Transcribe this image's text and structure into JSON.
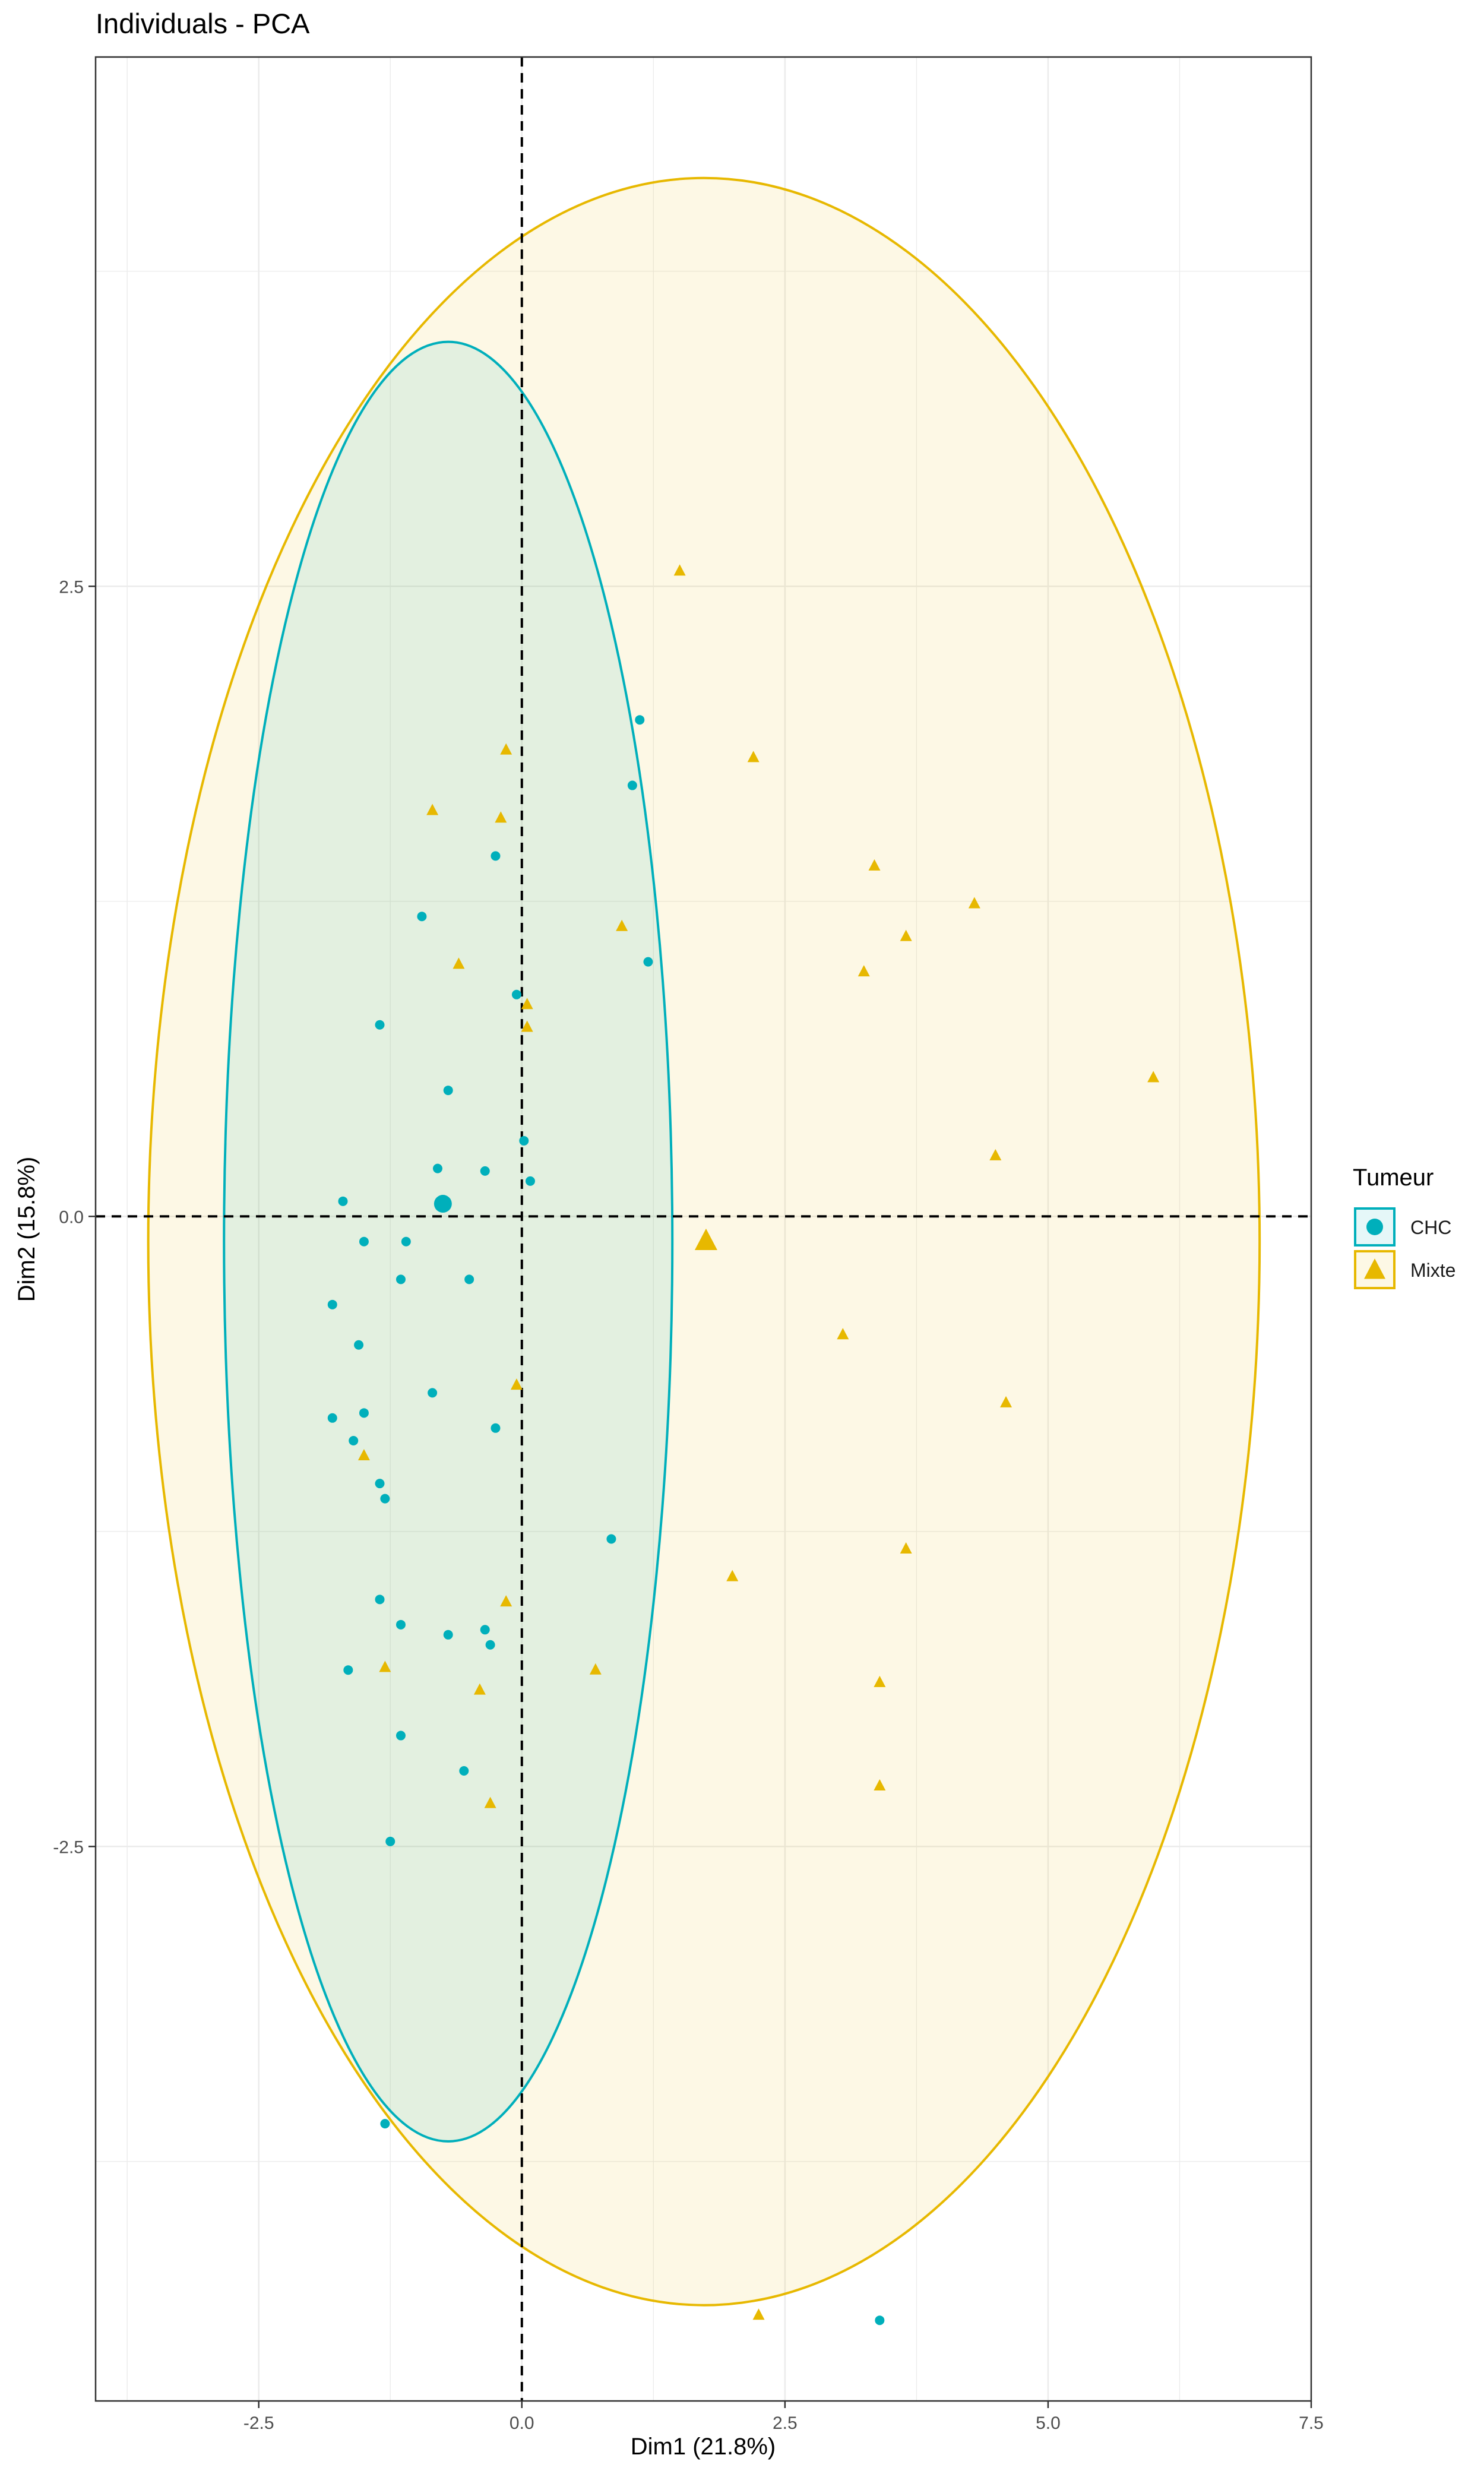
{
  "chart_data": {
    "type": "scatter",
    "title": "Individuals - PCA",
    "xlabel": "Dim1 (21.8%)",
    "ylabel": "Dim2 (15.8%)",
    "xlim": [
      -4.05,
      7.5
    ],
    "ylim": [
      -4.7,
      4.6
    ],
    "x_ticks": [
      -2.5,
      0.0,
      2.5,
      5.0,
      7.5
    ],
    "x_tick_labels": [
      "-2.5",
      "0.0",
      "2.5",
      "5.0",
      "7.5"
    ],
    "y_ticks": [
      -2.5,
      0.0,
      2.5
    ],
    "y_tick_labels": [
      "-2.5",
      "0.0",
      "2.5"
    ],
    "grid": true,
    "reference_lines": {
      "x": 0,
      "y": 0,
      "style": "dashed"
    },
    "legend": {
      "title": "Tumeur",
      "position": "right"
    },
    "series": [
      {
        "name": "CHC",
        "color": "#00AFBB",
        "marker": "circle",
        "centroid": [
          -0.75,
          0.05
        ],
        "ellipse": {
          "center": [
            -0.7,
            -0.1
          ],
          "rx": 2.13,
          "ry": 3.57,
          "fill": "#00AFBB",
          "fill_opacity": 0.1
        },
        "points": [
          [
            1.12,
            1.97
          ],
          [
            1.05,
            1.71
          ],
          [
            -0.25,
            1.43
          ],
          [
            -0.95,
            1.19
          ],
          [
            1.2,
            1.01
          ],
          [
            -0.05,
            0.88
          ],
          [
            -1.35,
            0.76
          ],
          [
            -0.7,
            0.5
          ],
          [
            0.02,
            0.3
          ],
          [
            -0.8,
            0.19
          ],
          [
            -0.35,
            0.18
          ],
          [
            0.08,
            0.14
          ],
          [
            -1.7,
            0.06
          ],
          [
            -1.5,
            -0.1
          ],
          [
            -1.1,
            -0.1
          ],
          [
            -1.15,
            -0.25
          ],
          [
            -0.5,
            -0.25
          ],
          [
            -1.8,
            -0.35
          ],
          [
            -1.55,
            -0.51
          ],
          [
            -0.85,
            -0.7
          ],
          [
            -1.8,
            -0.8
          ],
          [
            -1.5,
            -0.78
          ],
          [
            -0.25,
            -0.84
          ],
          [
            -1.6,
            -0.89
          ],
          [
            -1.35,
            -1.06
          ],
          [
            -1.3,
            -1.12
          ],
          [
            0.85,
            -1.28
          ],
          [
            -1.35,
            -1.52
          ],
          [
            -1.15,
            -1.62
          ],
          [
            -0.7,
            -1.66
          ],
          [
            -0.35,
            -1.64
          ],
          [
            -0.3,
            -1.7
          ],
          [
            -1.65,
            -1.8
          ],
          [
            -1.15,
            -2.06
          ],
          [
            -0.55,
            -2.2
          ],
          [
            -1.25,
            -2.48
          ],
          [
            -1.3,
            -3.6
          ],
          [
            3.4,
            -4.38
          ]
        ]
      },
      {
        "name": "Mixte",
        "color": "#E7B800",
        "marker": "triangle",
        "centroid": [
          1.75,
          -0.1
        ],
        "ellipse": {
          "center": [
            1.73,
            -0.1
          ],
          "rx": 5.28,
          "ry": 4.22,
          "fill": "#E7B800",
          "fill_opacity": 0.1
        },
        "points": [
          [
            1.5,
            2.56
          ],
          [
            2.2,
            1.82
          ],
          [
            -0.15,
            1.85
          ],
          [
            -0.85,
            1.61
          ],
          [
            -0.2,
            1.58
          ],
          [
            3.35,
            1.39
          ],
          [
            4.3,
            1.24
          ],
          [
            0.95,
            1.15
          ],
          [
            3.65,
            1.11
          ],
          [
            3.25,
            0.97
          ],
          [
            -0.6,
            1.0
          ],
          [
            0.05,
            0.84
          ],
          [
            0.05,
            0.75
          ],
          [
            6.0,
            0.55
          ],
          [
            4.5,
            0.24
          ],
          [
            3.05,
            -0.47
          ],
          [
            -0.05,
            -0.67
          ],
          [
            4.6,
            -0.74
          ],
          [
            -1.5,
            -0.95
          ],
          [
            3.65,
            -1.32
          ],
          [
            2.0,
            -1.43
          ],
          [
            -0.15,
            -1.53
          ],
          [
            -1.3,
            -1.79
          ],
          [
            0.7,
            -1.8
          ],
          [
            -0.4,
            -1.88
          ],
          [
            3.4,
            -1.85
          ],
          [
            3.4,
            -2.26
          ],
          [
            -0.3,
            -2.33
          ],
          [
            2.25,
            -4.36
          ]
        ]
      }
    ]
  }
}
